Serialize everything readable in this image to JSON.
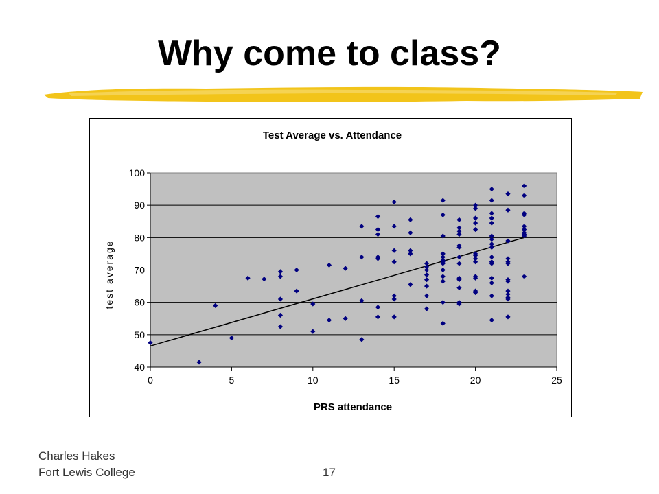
{
  "slide": {
    "title": "Why come to class?",
    "footer_line1": "Charles Hakes",
    "footer_line2": "Fort Lewis College",
    "page_number": "17",
    "accent_color": "#f2c41a"
  },
  "chart_data": {
    "type": "scatter",
    "title": "Test Average vs. Attendance",
    "xlabel": "PRS attendance",
    "ylabel": "test average",
    "xlim": [
      0,
      25
    ],
    "ylim": [
      40,
      100
    ],
    "xticks": [
      "0",
      "5",
      "10",
      "15",
      "20",
      "25"
    ],
    "yticks": [
      "40",
      "50",
      "60",
      "70",
      "80",
      "90",
      "100"
    ],
    "grid": "horizontal",
    "plot_background": "#c0c0c0",
    "marker_color": "#000080",
    "trendline": {
      "x": [
        0,
        23
      ],
      "y": [
        46.5,
        80
      ]
    },
    "points": [
      [
        0,
        47.5
      ],
      [
        3,
        41.5
      ],
      [
        4,
        59
      ],
      [
        5,
        49
      ],
      [
        6,
        67.5
      ],
      [
        7,
        67.2
      ],
      [
        8,
        69.5
      ],
      [
        8,
        68
      ],
      [
        8,
        61
      ],
      [
        8,
        56
      ],
      [
        8,
        52.5
      ],
      [
        9,
        70
      ],
      [
        9,
        63.5
      ],
      [
        10,
        59.5
      ],
      [
        10,
        51
      ],
      [
        11,
        71.5
      ],
      [
        11,
        54.5
      ],
      [
        12,
        70.5
      ],
      [
        12,
        55
      ],
      [
        13,
        83.5
      ],
      [
        13,
        74
      ],
      [
        13,
        60.5
      ],
      [
        13,
        48.5
      ],
      [
        14,
        86.5
      ],
      [
        14,
        82.5
      ],
      [
        14,
        81
      ],
      [
        14,
        74
      ],
      [
        14,
        73.5
      ],
      [
        14,
        58.5
      ],
      [
        14,
        55.5
      ],
      [
        15,
        91
      ],
      [
        15,
        83.5
      ],
      [
        15,
        76
      ],
      [
        15,
        72.5
      ],
      [
        15,
        62
      ],
      [
        15,
        61
      ],
      [
        15,
        55.5
      ],
      [
        16,
        85.5
      ],
      [
        16,
        81.5
      ],
      [
        16,
        76
      ],
      [
        16,
        75
      ],
      [
        16,
        65.5
      ],
      [
        17,
        72
      ],
      [
        17,
        71
      ],
      [
        17,
        70
      ],
      [
        17,
        68.5
      ],
      [
        17,
        67
      ],
      [
        17,
        65
      ],
      [
        17,
        62
      ],
      [
        17,
        58
      ],
      [
        18,
        91.5
      ],
      [
        18,
        87
      ],
      [
        18,
        80.5
      ],
      [
        18,
        75
      ],
      [
        18,
        74
      ],
      [
        18,
        73
      ],
      [
        18,
        72.5
      ],
      [
        18,
        72
      ],
      [
        18,
        70
      ],
      [
        18,
        68
      ],
      [
        18,
        66.5
      ],
      [
        18,
        60
      ],
      [
        18,
        53.5
      ],
      [
        19,
        85.5
      ],
      [
        19,
        83
      ],
      [
        19,
        82
      ],
      [
        19,
        81
      ],
      [
        19,
        77.5
      ],
      [
        19,
        77
      ],
      [
        19,
        74
      ],
      [
        19,
        72
      ],
      [
        19,
        67.5
      ],
      [
        19,
        67
      ],
      [
        19,
        64.5
      ],
      [
        19,
        60
      ],
      [
        19,
        59.5
      ],
      [
        20,
        90
      ],
      [
        20,
        89
      ],
      [
        20,
        86
      ],
      [
        20,
        84.5
      ],
      [
        20,
        82.5
      ],
      [
        20,
        75
      ],
      [
        20,
        74.5
      ],
      [
        20,
        73.5
      ],
      [
        20,
        72.5
      ],
      [
        20,
        68
      ],
      [
        20,
        67.5
      ],
      [
        20,
        63.5
      ],
      [
        20,
        63
      ],
      [
        21,
        95
      ],
      [
        21,
        91.5
      ],
      [
        21,
        87.5
      ],
      [
        21,
        86
      ],
      [
        21,
        84.5
      ],
      [
        21,
        80.5
      ],
      [
        21,
        79.5
      ],
      [
        21,
        78
      ],
      [
        21,
        77
      ],
      [
        21,
        74
      ],
      [
        21,
        72.5
      ],
      [
        21,
        72
      ],
      [
        21,
        67.5
      ],
      [
        21,
        66
      ],
      [
        21,
        62
      ],
      [
        21,
        54.5
      ],
      [
        22,
        93.5
      ],
      [
        22,
        88.5
      ],
      [
        22,
        79
      ],
      [
        22,
        73.5
      ],
      [
        22,
        72.5
      ],
      [
        22,
        72
      ],
      [
        22,
        67
      ],
      [
        22,
        66.5
      ],
      [
        22,
        63.5
      ],
      [
        22,
        62.5
      ],
      [
        22,
        61.5
      ],
      [
        22,
        61
      ],
      [
        22,
        55.5
      ],
      [
        23,
        96
      ],
      [
        23,
        93
      ],
      [
        23,
        87.5
      ],
      [
        23,
        87
      ],
      [
        23,
        83.5
      ],
      [
        23,
        82.5
      ],
      [
        23,
        81.5
      ],
      [
        23,
        81
      ],
      [
        23,
        80.5
      ],
      [
        23,
        68
      ]
    ]
  }
}
